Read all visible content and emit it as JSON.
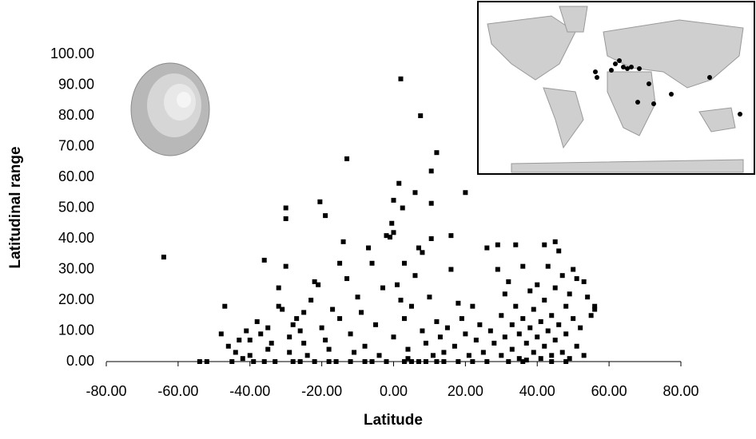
{
  "chart_data": {
    "type": "scatter",
    "x_label": "Latitude",
    "y_label": "Latitudinal range",
    "color": "#000000",
    "xlim": [
      -80,
      80
    ],
    "ylim": [
      0,
      100
    ],
    "xticks": [
      {
        "value": -80,
        "label": "-80.00"
      },
      {
        "value": -60,
        "label": "-60.00"
      },
      {
        "value": -40,
        "label": "-40.00"
      },
      {
        "value": -20,
        "label": "-20.00"
      },
      {
        "value": 0,
        "label": "0.00"
      },
      {
        "value": 20,
        "label": "20.00"
      },
      {
        "value": 40,
        "label": "40.00"
      },
      {
        "value": 60,
        "label": "60.00"
      },
      {
        "value": 80,
        "label": "80.00"
      }
    ],
    "yticks": [
      {
        "value": 0,
        "label": "0.00"
      },
      {
        "value": 10,
        "label": "10.00"
      },
      {
        "value": 20,
        "label": "20.00"
      },
      {
        "value": 30,
        "label": "30.00"
      },
      {
        "value": 40,
        "label": "40.00"
      },
      {
        "value": 50,
        "label": "50.00"
      },
      {
        "value": 60,
        "label": "60.00"
      },
      {
        "value": 70,
        "label": "70.00"
      },
      {
        "value": 80,
        "label": "80.00"
      },
      {
        "value": 90,
        "label": "90.00"
      },
      {
        "value": 100,
        "label": "100.00"
      }
    ],
    "x": [
      -64,
      -54,
      -52,
      -48,
      -47,
      -46,
      -45,
      -44,
      -43,
      -42,
      -41,
      -40,
      -40,
      -39,
      -38,
      -37,
      -36,
      -35,
      -35,
      -34,
      -33,
      -32,
      -32,
      -31,
      -30,
      -30,
      -30,
      -29,
      -29,
      -28,
      -28,
      -27,
      -26,
      -25,
      -25,
      -24,
      -23,
      -22,
      -21,
      -20.5,
      -20,
      -19,
      -19,
      -18,
      -17,
      -16,
      -15,
      -15,
      -14,
      -13,
      -13,
      -12,
      -11,
      -10,
      -9,
      -8,
      -7,
      -6,
      -5,
      -4,
      -3,
      -2,
      -1,
      -0.5,
      0,
      0,
      0,
      1,
      1.5,
      2,
      2,
      2.5,
      3,
      3,
      4,
      4,
      5,
      6,
      6,
      7,
      7.5,
      8,
      8,
      9,
      10,
      10.5,
      10.5,
      10.5,
      11,
      12,
      12,
      13,
      14,
      15,
      16,
      16,
      17,
      18,
      19,
      20,
      20,
      21,
      22,
      23,
      24,
      25,
      26,
      27,
      28,
      29,
      29,
      30,
      30,
      31,
      31,
      32,
      33,
      33,
      34,
      34,
      35,
      35,
      36,
      36,
      37,
      37,
      38,
      38,
      39,
      39,
      40,
      40,
      41,
      41,
      42,
      42,
      42,
      43,
      43,
      44,
      44,
      45,
      45,
      45,
      46,
      46,
      47,
      47,
      48,
      48,
      49,
      49,
      50,
      50,
      51,
      51,
      52,
      53,
      53,
      54,
      55,
      56,
      56,
      -36,
      -26,
      -22,
      -18,
      -12,
      -8,
      -6,
      -2,
      3,
      5,
      7,
      9,
      12,
      14,
      18,
      22,
      26,
      32,
      36,
      44,
      48
    ],
    "values": [
      34,
      0,
      0,
      9,
      18,
      5,
      0,
      3,
      7,
      1,
      10,
      7,
      2,
      0,
      13,
      9,
      33,
      11,
      4,
      6,
      0,
      24,
      18,
      17,
      50,
      46.5,
      31,
      8,
      3,
      12,
      0,
      14,
      10,
      6,
      16,
      2,
      20,
      26,
      25,
      52,
      11,
      47.5,
      7,
      4,
      17,
      0,
      32,
      14,
      39,
      66,
      27,
      9,
      3,
      21,
      16,
      5,
      37,
      32,
      12,
      2,
      24,
      41,
      40.5,
      45,
      42,
      52.5,
      8,
      25,
      58,
      92,
      20,
      50,
      32,
      14,
      4,
      1,
      18,
      55,
      28,
      37,
      80,
      35.5,
      10,
      6,
      21,
      62,
      51.5,
      40,
      2,
      68,
      13,
      8,
      3,
      11,
      41,
      30,
      5,
      19,
      14,
      55,
      9,
      2,
      18,
      7,
      12,
      3,
      37,
      10,
      6,
      38,
      30,
      15,
      2,
      22,
      8,
      26,
      12,
      4,
      38,
      18,
      1,
      9,
      31,
      14,
      6,
      0.5,
      23,
      11,
      3,
      17,
      25,
      8,
      1,
      13,
      38,
      20,
      5,
      31,
      10,
      2,
      15,
      39,
      24,
      7,
      36,
      12,
      3,
      28,
      18,
      9,
      1,
      22,
      30,
      14,
      5,
      27,
      11,
      26,
      2,
      21,
      15,
      18,
      17,
      0,
      0,
      0,
      0,
      0,
      0,
      0,
      0,
      0,
      0,
      0,
      0,
      0,
      0,
      0,
      0,
      0,
      0,
      0,
      0,
      0
    ]
  }
}
